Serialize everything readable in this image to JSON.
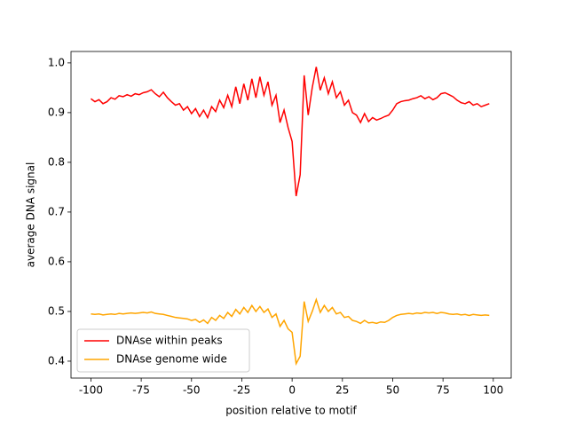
{
  "chart_data": {
    "type": "line",
    "xlabel": "position relative to motif",
    "ylabel": "average DNA signal",
    "x": [
      -100,
      -98,
      -96,
      -94,
      -92,
      -90,
      -88,
      -86,
      -84,
      -82,
      -80,
      -78,
      -76,
      -74,
      -72,
      -70,
      -68,
      -66,
      -64,
      -62,
      -60,
      -58,
      -56,
      -54,
      -52,
      -50,
      -48,
      -46,
      -44,
      -42,
      -40,
      -38,
      -36,
      -34,
      -32,
      -30,
      -28,
      -26,
      -24,
      -22,
      -20,
      -18,
      -16,
      -14,
      -12,
      -10,
      -8,
      -6,
      -4,
      -2,
      0,
      2,
      4,
      6,
      8,
      10,
      12,
      14,
      16,
      18,
      20,
      22,
      24,
      26,
      28,
      30,
      32,
      34,
      36,
      38,
      40,
      42,
      44,
      46,
      48,
      50,
      52,
      54,
      56,
      58,
      60,
      62,
      64,
      66,
      68,
      70,
      72,
      74,
      76,
      78,
      80,
      82,
      84,
      86,
      88,
      90,
      92,
      94,
      96,
      98
    ],
    "series": [
      {
        "name": "DNAse within peaks",
        "color": "#ff0000",
        "values": [
          0.928,
          0.922,
          0.926,
          0.918,
          0.922,
          0.93,
          0.927,
          0.934,
          0.932,
          0.936,
          0.933,
          0.938,
          0.936,
          0.94,
          0.942,
          0.946,
          0.938,
          0.932,
          0.941,
          0.93,
          0.922,
          0.915,
          0.918,
          0.905,
          0.912,
          0.898,
          0.908,
          0.892,
          0.905,
          0.89,
          0.912,
          0.902,
          0.925,
          0.91,
          0.935,
          0.912,
          0.952,
          0.918,
          0.958,
          0.925,
          0.968,
          0.93,
          0.972,
          0.935,
          0.962,
          0.915,
          0.935,
          0.88,
          0.905,
          0.87,
          0.842,
          0.732,
          0.775,
          0.975,
          0.895,
          0.95,
          0.992,
          0.945,
          0.97,
          0.938,
          0.962,
          0.93,
          0.942,
          0.915,
          0.925,
          0.9,
          0.895,
          0.88,
          0.898,
          0.882,
          0.89,
          0.885,
          0.888,
          0.892,
          0.895,
          0.905,
          0.918,
          0.922,
          0.924,
          0.925,
          0.928,
          0.93,
          0.934,
          0.928,
          0.932,
          0.926,
          0.93,
          0.938,
          0.94,
          0.936,
          0.932,
          0.925,
          0.92,
          0.918,
          0.922,
          0.915,
          0.918,
          0.912,
          0.915,
          0.918
        ]
      },
      {
        "name": "DNAse genome wide",
        "color": "#ffa500",
        "values": [
          0.495,
          0.494,
          0.495,
          0.493,
          0.494,
          0.495,
          0.494,
          0.496,
          0.495,
          0.496,
          0.497,
          0.496,
          0.497,
          0.498,
          0.497,
          0.499,
          0.496,
          0.495,
          0.494,
          0.492,
          0.49,
          0.488,
          0.487,
          0.486,
          0.485,
          0.482,
          0.484,
          0.478,
          0.483,
          0.476,
          0.488,
          0.482,
          0.492,
          0.486,
          0.498,
          0.49,
          0.504,
          0.495,
          0.508,
          0.498,
          0.512,
          0.5,
          0.51,
          0.498,
          0.505,
          0.488,
          0.495,
          0.47,
          0.482,
          0.465,
          0.458,
          0.395,
          0.41,
          0.52,
          0.48,
          0.5,
          0.524,
          0.498,
          0.512,
          0.5,
          0.508,
          0.495,
          0.498,
          0.488,
          0.49,
          0.482,
          0.48,
          0.476,
          0.482,
          0.477,
          0.478,
          0.476,
          0.479,
          0.478,
          0.482,
          0.488,
          0.492,
          0.494,
          0.495,
          0.496,
          0.495,
          0.497,
          0.496,
          0.498,
          0.497,
          0.498,
          0.496,
          0.498,
          0.497,
          0.495,
          0.494,
          0.495,
          0.493,
          0.494,
          0.492,
          0.494,
          0.493,
          0.492,
          0.493,
          0.492
        ]
      }
    ],
    "xlim": [
      -109.9,
      108.9
    ],
    "xticks": [
      -100,
      -75,
      -50,
      -25,
      0,
      25,
      50,
      75,
      100
    ],
    "ylim": [
      0.366,
      1.023
    ],
    "yticks": [
      0.4,
      0.5,
      0.6,
      0.7,
      0.8,
      0.9,
      {
        "value": 1,
        "label": "1.0"
      }
    ],
    "legend": "lower left"
  }
}
